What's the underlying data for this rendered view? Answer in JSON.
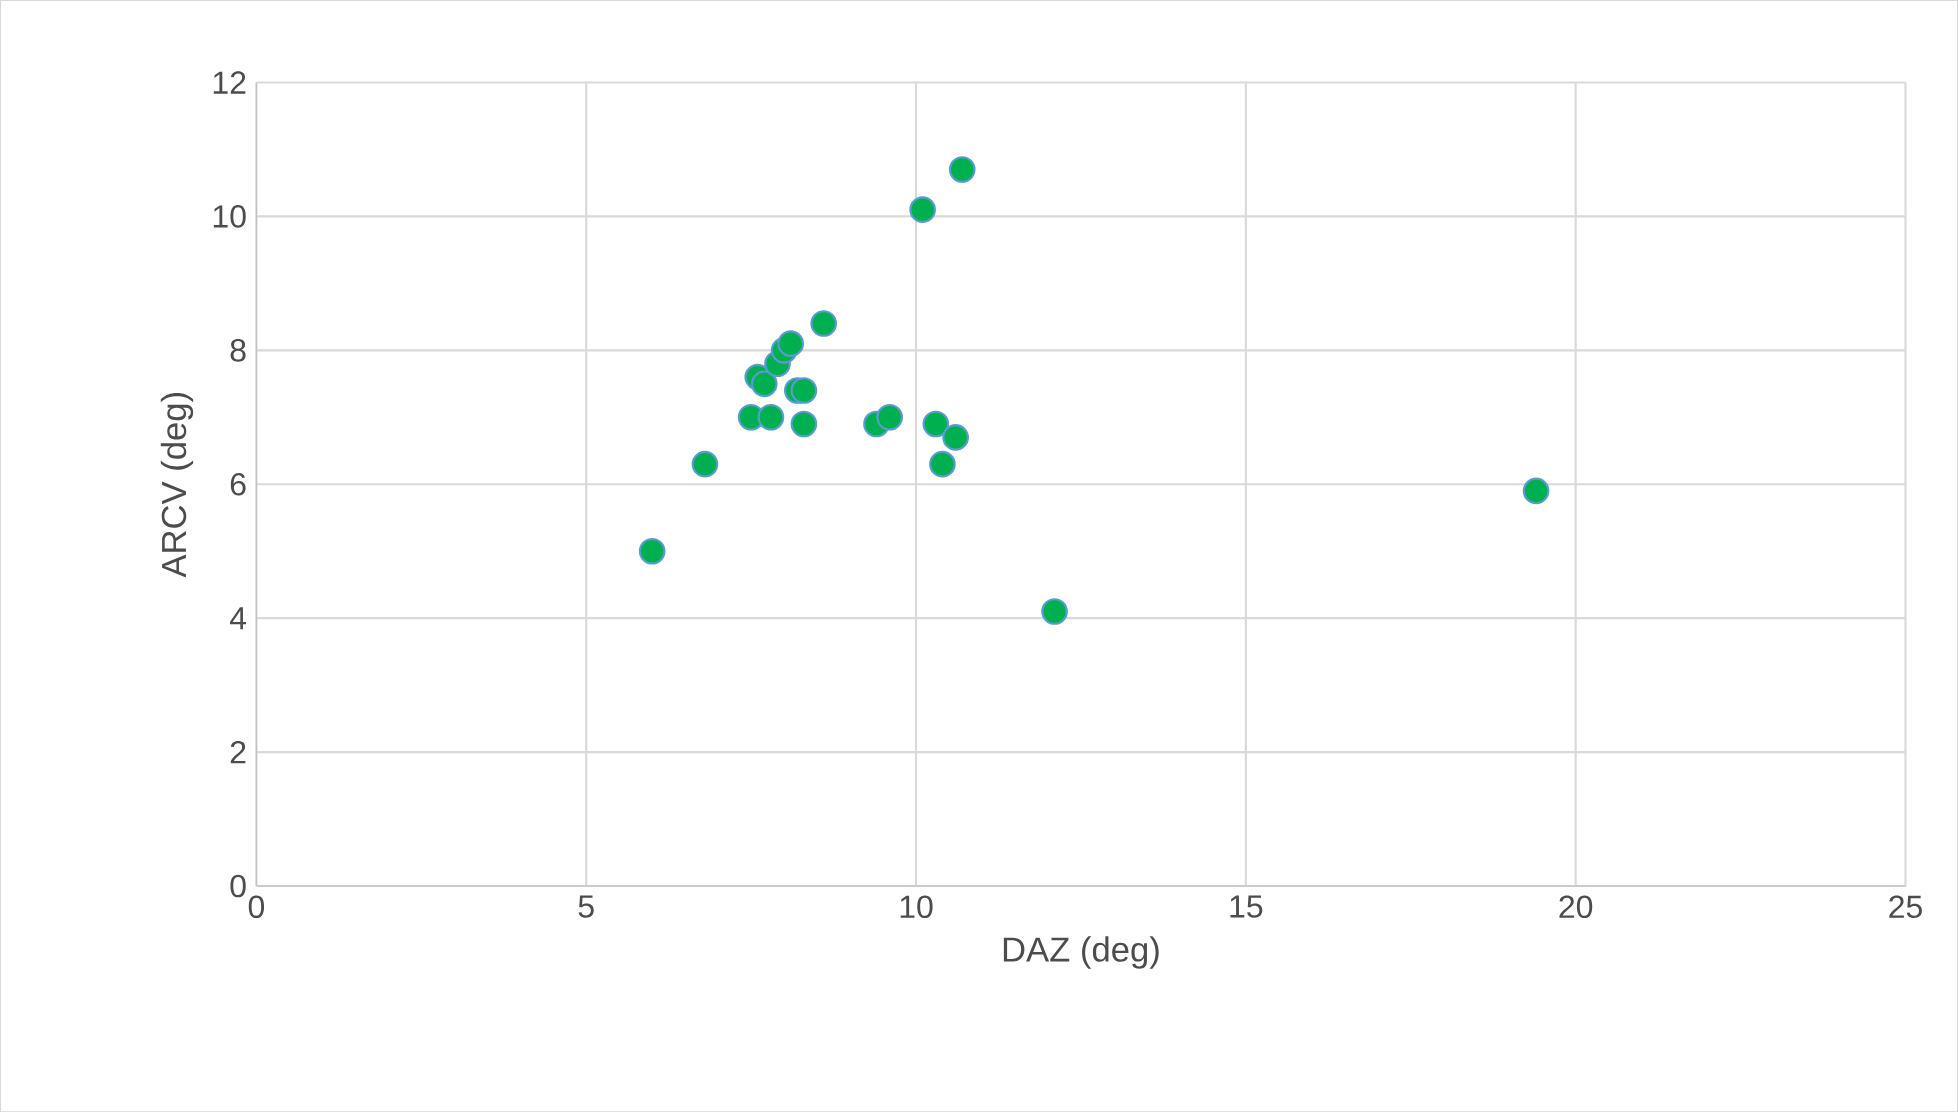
{
  "chart_data": {
    "type": "scatter",
    "xlabel": "DAZ (deg)",
    "ylabel": "ARCV (deg)",
    "x": [
      6.0,
      6.8,
      7.5,
      7.6,
      7.7,
      7.8,
      7.9,
      8.0,
      8.1,
      8.2,
      8.3,
      8.3,
      8.6,
      9.4,
      9.6,
      10.1,
      10.3,
      10.4,
      10.6,
      10.7,
      12.1,
      19.4
    ],
    "values": [
      5.0,
      6.3,
      7.0,
      7.6,
      7.5,
      7.0,
      7.8,
      8.0,
      8.1,
      7.4,
      7.4,
      6.9,
      8.4,
      6.9,
      7.0,
      10.1,
      6.9,
      6.3,
      6.7,
      10.7,
      4.1,
      5.9
    ],
    "color": "#00b050",
    "marker": "circle",
    "xlim": [
      0,
      25
    ],
    "xticks": [
      0,
      5,
      10,
      15,
      20,
      25
    ],
    "ylim": [
      0,
      12
    ],
    "yticks": [
      0,
      2,
      4,
      6,
      8,
      10,
      12
    ],
    "grid": true
  }
}
